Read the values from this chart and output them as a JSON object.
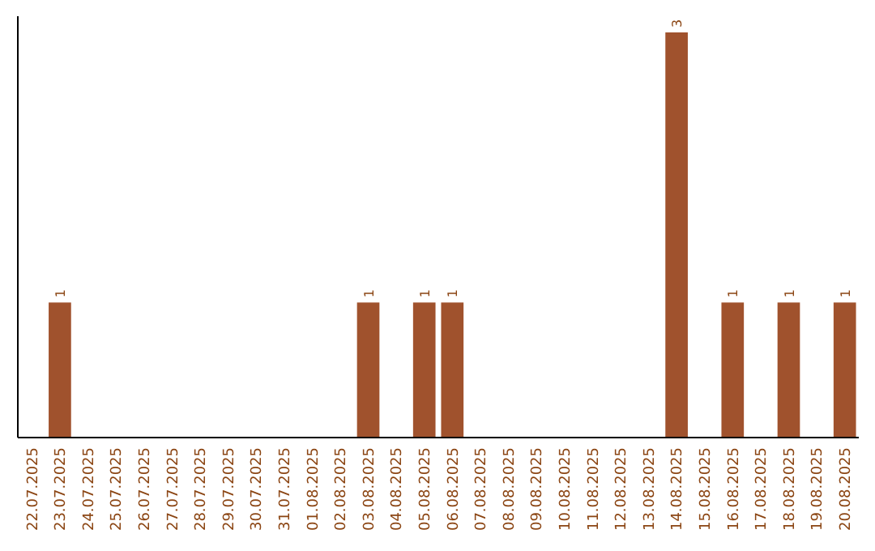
{
  "chart_data": {
    "type": "bar",
    "categories": [
      "22.07.2025",
      "23.07.2025",
      "24.07.2025",
      "25.07.2025",
      "26.07.2025",
      "27.07.2025",
      "28.07.2025",
      "29.07.2025",
      "30.07.2025",
      "31.07.2025",
      "01.08.2025",
      "02.08.2025",
      "03.08.2025",
      "04.08.2025",
      "05.08.2025",
      "06.08.2025",
      "07.08.2025",
      "08.08.2025",
      "09.08.2025",
      "10.08.2025",
      "11.08.2025",
      "12.08.2025",
      "13.08.2025",
      "14.08.2025",
      "15.08.2025",
      "16.08.2025",
      "17.08.2025",
      "18.08.2025",
      "19.08.2025",
      "20.08.2025"
    ],
    "values": [
      0,
      1,
      0,
      0,
      0,
      0,
      0,
      0,
      0,
      0,
      0,
      0,
      1,
      0,
      1,
      1,
      0,
      0,
      0,
      0,
      0,
      0,
      0,
      3,
      0,
      1,
      0,
      1,
      0,
      1
    ],
    "value_labels": [
      null,
      "1",
      null,
      null,
      null,
      null,
      null,
      null,
      null,
      null,
      null,
      null,
      "1",
      null,
      "1",
      "1",
      null,
      null,
      null,
      null,
      null,
      null,
      null,
      "3",
      null,
      "1",
      null,
      "1",
      null,
      "1"
    ],
    "color": "#a0522d",
    "grid": false,
    "legend": false
  }
}
